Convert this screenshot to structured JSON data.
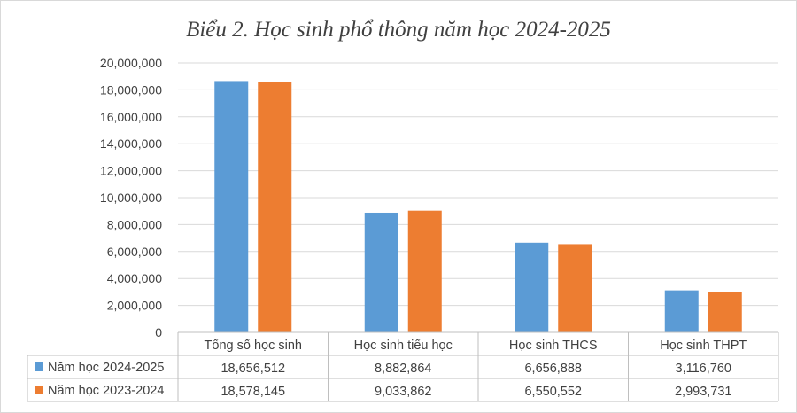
{
  "chart_data": {
    "type": "bar",
    "title": "Biểu 2. Học sinh phổ thông năm học 2024-2025",
    "categories": [
      "Tổng số học sinh",
      "Học sinh tiểu học",
      "Học sinh THCS",
      "Học sinh THPT"
    ],
    "series": [
      {
        "name": "Năm học 2024-2025",
        "color": "#5B9BD5",
        "values": [
          18656512,
          8882864,
          6656888,
          3116760
        ],
        "labels": [
          "18,656,512",
          "8,882,864",
          "6,656,888",
          "3,116,760"
        ]
      },
      {
        "name": "Năm học 2023-2024",
        "color": "#ED7D31",
        "values": [
          18578145,
          9033862,
          6550552,
          2993731
        ],
        "labels": [
          "18,578,145",
          "9,033,862",
          "6,550,552",
          "2,993,731"
        ]
      }
    ],
    "ylim": [
      0,
      20000000
    ],
    "yticks": [
      "0",
      "2,000,000",
      "4,000,000",
      "6,000,000",
      "8,000,000",
      "10,000,000",
      "12,000,000",
      "14,000,000",
      "16,000,000",
      "18,000,000",
      "20,000,000"
    ],
    "grid": true,
    "legend": "data-table",
    "data_table": true
  }
}
